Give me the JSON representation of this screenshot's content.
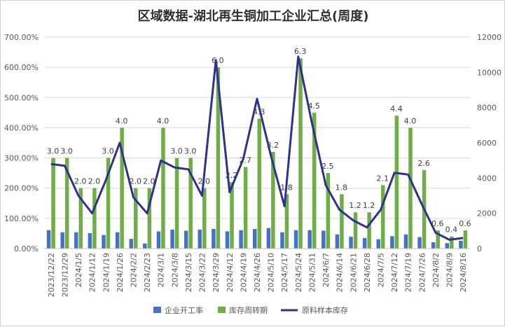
{
  "chart_data": {
    "type": "bar",
    "title": "区域数据-湖北再生铜加工企业汇总(周度)",
    "categories": [
      "2023/12/22",
      "2023/12/29",
      "2024/1/5",
      "2024/1/12",
      "2024/1/19",
      "2024/1/26",
      "2024/2/2",
      "2024/2/23",
      "2024/3/1",
      "2024/3/8",
      "2024/3/15",
      "2024/3/22",
      "2024/3/29",
      "2024/4/12",
      "2024/4/19",
      "2024/4/26",
      "2024/5/10",
      "2024/5/17",
      "2024/5/24",
      "2024/5/31",
      "2024/6/7",
      "2024/6/14",
      "2024/6/21",
      "2024/6/28",
      "2024/7/5",
      "2024/7/12",
      "2024/7/19",
      "2024/7/26",
      "2024/8/2",
      "2024/8/9",
      "2024/8/16"
    ],
    "left_axis": {
      "min": 0,
      "max": 700,
      "step": 100,
      "tick_labels": [
        "0.00%",
        "100.00%",
        "200.00%",
        "300.00%",
        "400.00%",
        "500.00%",
        "600.00%",
        "700.00%"
      ]
    },
    "right_axis": {
      "min": 0,
      "max": 12000,
      "step": 2000,
      "tick_labels": [
        "0",
        "2000",
        "4000",
        "6000",
        "8000",
        "10000",
        "12000"
      ]
    },
    "series": [
      {
        "name": "企业开工率",
        "type": "bar",
        "axis": "left",
        "color": "#4472c4",
        "values": [
          61,
          54,
          54,
          51,
          45,
          54,
          32,
          17,
          57,
          63,
          59,
          63,
          65,
          57,
          61,
          65,
          68,
          54,
          61,
          61,
          59,
          47,
          39,
          35,
          31,
          41,
          47,
          38,
          21,
          18,
          26
        ]
      },
      {
        "name": "库存周转期",
        "type": "bar",
        "axis": "left",
        "color": "#70ad47",
        "values": [
          300,
          300,
          200,
          200,
          300,
          400,
          200,
          200,
          400,
          300,
          300,
          200,
          600,
          220,
          270,
          430,
          320,
          180,
          630,
          450,
          250,
          180,
          120,
          120,
          210,
          440,
          400,
          260,
          60,
          40,
          60
        ],
        "labels": [
          "3.0",
          "3.0",
          "2.0",
          "2.0",
          "3.0",
          "4.0",
          "2.0",
          "2.0",
          "4.0",
          "3.0",
          "3.0",
          "2.0",
          "6.0",
          "2.2",
          "2.7",
          "4.3",
          "3.2",
          "1.8",
          "6.3",
          "4.5",
          "2.5",
          "1.8",
          "1.2",
          "1.2",
          "2.1",
          "4.4",
          "4.0",
          "2.6",
          "0.6",
          "0.4",
          "0.6"
        ]
      },
      {
        "name": "原料样本库存",
        "type": "line",
        "axis": "right",
        "color": "#2e3192",
        "values": [
          4800,
          4700,
          3000,
          2000,
          3900,
          6000,
          2900,
          2000,
          5000,
          4600,
          4500,
          3000,
          10700,
          3200,
          5100,
          8500,
          5300,
          2400,
          10900,
          7100,
          3600,
          2200,
          1600,
          1200,
          2200,
          4300,
          4200,
          2500,
          900,
          500,
          600
        ]
      }
    ],
    "legend_position": "bottom"
  }
}
